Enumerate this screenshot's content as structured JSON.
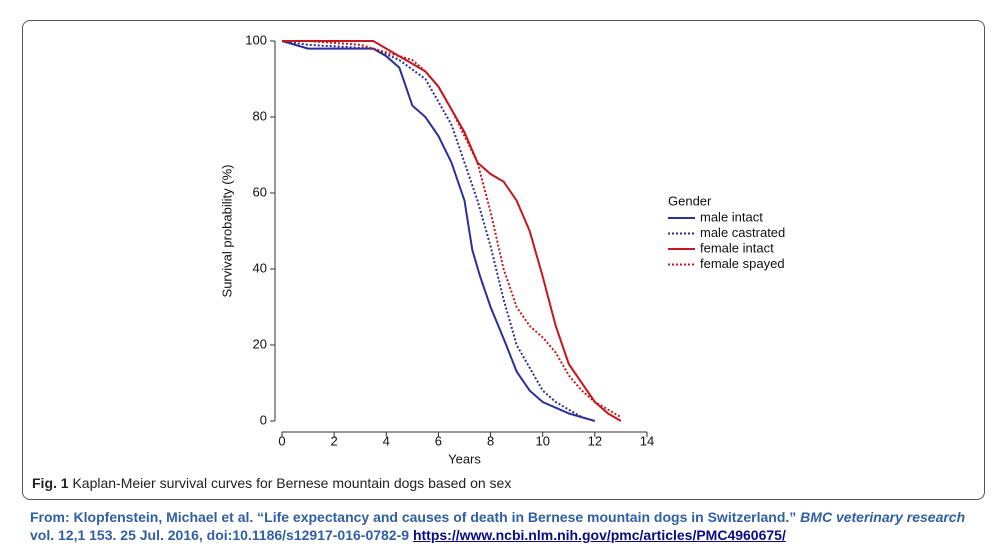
{
  "chart_data": {
    "type": "line",
    "x_label": "Years",
    "y_label": "Survival probability (%)",
    "xlim": [
      0,
      14
    ],
    "xticks": [
      0,
      2,
      4,
      6,
      8,
      10,
      12,
      14
    ],
    "ylim": [
      0,
      100
    ],
    "yticks": [
      0,
      20,
      40,
      60,
      80,
      100
    ],
    "legend_title": "Gender",
    "series": [
      {
        "name": "male intact",
        "color": "#2b2f9e",
        "style": "solid",
        "x": [
          0,
          1,
          3.5,
          4,
          4.5,
          5,
          5.5,
          6,
          6.5,
          7,
          7.3,
          7.6,
          8,
          8.3,
          8.6,
          9,
          9.5,
          10,
          11,
          12
        ],
        "values": [
          100,
          98,
          98,
          96,
          93,
          83,
          80,
          75,
          68,
          58,
          45,
          38,
          30,
          25,
          20,
          13,
          8,
          5,
          2,
          0
        ]
      },
      {
        "name": "male castrated",
        "color": "#2b2f9e",
        "style": "dotted",
        "x": [
          0,
          1,
          3.5,
          4.5,
          5.5,
          6,
          6.5,
          7,
          7.5,
          8,
          8.5,
          9,
          9.5,
          10,
          10.5,
          11,
          11.5
        ],
        "values": [
          100,
          99,
          98,
          95,
          90,
          84,
          78,
          68,
          58,
          46,
          32,
          20,
          14,
          8,
          5,
          3,
          1
        ]
      },
      {
        "name": "female intact",
        "color": "#c8161d",
        "style": "solid",
        "x": [
          0,
          3.5,
          4,
          4.5,
          5,
          5.5,
          6,
          6.5,
          7,
          7.5,
          8,
          8.5,
          9,
          9.5,
          10,
          10.5,
          11,
          11.5,
          12,
          12.5,
          13
        ],
        "values": [
          100,
          100,
          98,
          96,
          94,
          92,
          88,
          82,
          76,
          68,
          65,
          63,
          58,
          50,
          38,
          25,
          15,
          10,
          5,
          2,
          0
        ]
      },
      {
        "name": "female spayed",
        "color": "#c8161d",
        "style": "dotted",
        "x": [
          0,
          1,
          3,
          4,
          5,
          5.5,
          6,
          6.5,
          7,
          7.5,
          8,
          8.5,
          9,
          9.5,
          10,
          10.5,
          11,
          11.5,
          12,
          12.5,
          13
        ],
        "values": [
          100,
          100,
          99,
          97,
          95,
          92,
          88,
          82,
          75,
          68,
          55,
          40,
          30,
          25,
          22,
          18,
          12,
          8,
          5,
          3,
          1
        ]
      }
    ]
  },
  "caption": {
    "label": "Fig. 1",
    "text": "Kaplan-Meier survival curves for Bernese mountain dogs based on sex"
  },
  "citation": {
    "prefix": "From: Klopfenstein, Michael et al. “Life expectancy and causes of death in Bernese mountain dogs in Switzerland.”",
    "journal": "BMC veterinary research",
    "rest": "vol. 12,1 153. 25 Jul. 2016, doi:10.1186/s12917-016-0782-9",
    "url": "https://www.ncbi.nlm.nih.gov/pmc/articles/PMC4960675/"
  }
}
